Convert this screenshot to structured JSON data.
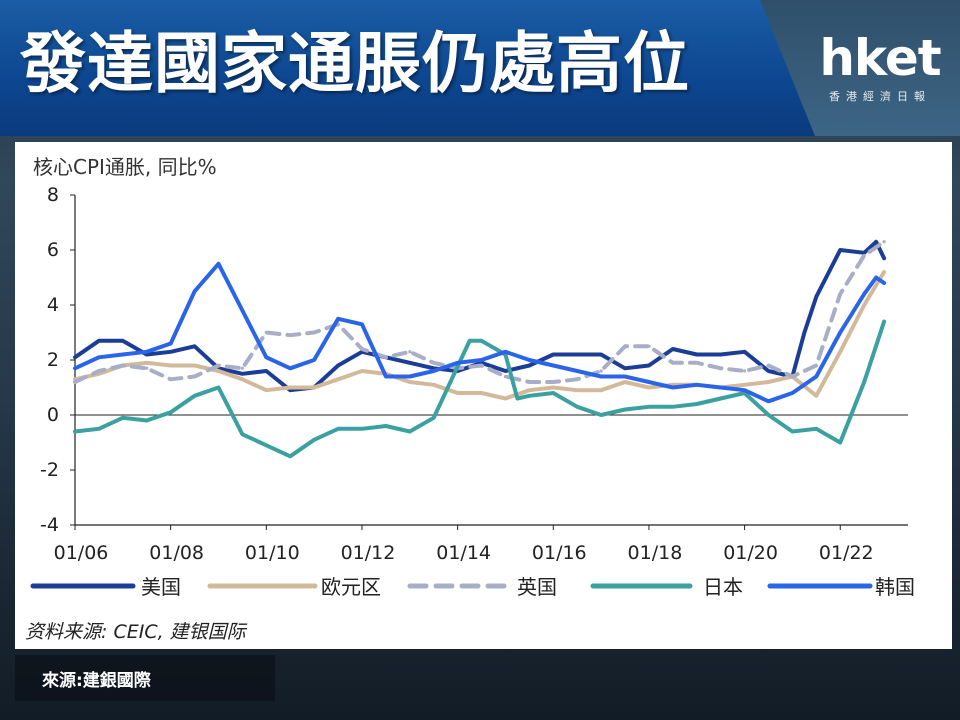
{
  "header": {
    "title": "發達國家通脹仍處高位",
    "logo_text": "hket",
    "logo_subtext": "香港經濟日報"
  },
  "footer": {
    "source": "來源:建銀國際"
  },
  "colors": {
    "us": "#1c3d96",
    "eurozone": "#d2b99a",
    "uk": "#a7aec6",
    "japan": "#3aa0a0",
    "korea": "#2a64e8",
    "title_band": "#0d4690"
  },
  "chart_data": {
    "type": "line",
    "title": "核心CPI通胀, 同比%",
    "source_note": "资料来源: CEIC, 建银国际",
    "xlabel": "",
    "ylabel": "",
    "x_ticks": [
      "01/06",
      "01/08",
      "01/10",
      "01/12",
      "01/14",
      "01/16",
      "01/18",
      "01/20",
      "01/22"
    ],
    "xlim": [
      "01/2006",
      "12/2022"
    ],
    "ylim": [
      -4,
      8
    ],
    "y_ticks": [
      "8",
      "6",
      "4",
      "2",
      "0",
      "-2",
      "-4"
    ],
    "grid": false,
    "legend_position": "bottom",
    "series": [
      {
        "name": "美国",
        "style": "solid",
        "color_key": "us",
        "x": [
          "01/2006",
          "07/2006",
          "01/2007",
          "07/2007",
          "01/2008",
          "07/2008",
          "01/2009",
          "07/2009",
          "01/2010",
          "07/2010",
          "01/2011",
          "07/2011",
          "01/2012",
          "07/2012",
          "01/2013",
          "07/2013",
          "01/2014",
          "07/2014",
          "01/2015",
          "07/2015",
          "01/2016",
          "07/2016",
          "01/2017",
          "07/2017",
          "01/2018",
          "07/2018",
          "01/2019",
          "07/2019",
          "01/2020",
          "07/2020",
          "01/2021",
          "04/2021",
          "07/2021",
          "01/2022",
          "07/2022",
          "10/2022",
          "12/2022"
        ],
        "values": [
          2.1,
          2.7,
          2.7,
          2.2,
          2.3,
          2.5,
          1.7,
          1.5,
          1.6,
          0.9,
          1.0,
          1.8,
          2.3,
          2.1,
          1.9,
          1.7,
          1.6,
          1.9,
          1.6,
          1.8,
          2.2,
          2.2,
          2.2,
          1.7,
          1.8,
          2.4,
          2.2,
          2.2,
          2.3,
          1.6,
          1.4,
          3.0,
          4.3,
          6.0,
          5.9,
          6.3,
          5.7
        ]
      },
      {
        "name": "欧元区",
        "style": "solid",
        "color_key": "eurozone",
        "x": [
          "01/2006",
          "07/2006",
          "01/2007",
          "07/2007",
          "01/2008",
          "07/2008",
          "01/2009",
          "07/2009",
          "01/2010",
          "07/2010",
          "01/2011",
          "07/2011",
          "01/2012",
          "07/2012",
          "01/2013",
          "07/2013",
          "01/2014",
          "07/2014",
          "01/2015",
          "07/2015",
          "01/2016",
          "07/2016",
          "01/2017",
          "07/2017",
          "01/2018",
          "07/2018",
          "01/2019",
          "07/2019",
          "01/2020",
          "07/2020",
          "01/2021",
          "07/2021",
          "01/2022",
          "07/2022",
          "12/2022"
        ],
        "values": [
          1.3,
          1.5,
          1.8,
          1.9,
          1.8,
          1.8,
          1.6,
          1.3,
          0.9,
          1.0,
          1.0,
          1.3,
          1.6,
          1.5,
          1.2,
          1.1,
          0.8,
          0.8,
          0.6,
          0.9,
          1.0,
          0.9,
          0.9,
          1.2,
          1.0,
          1.1,
          1.1,
          1.0,
          1.1,
          1.2,
          1.4,
          0.7,
          2.3,
          4.0,
          5.2
        ]
      },
      {
        "name": "英国",
        "style": "dashed",
        "color_key": "uk",
        "x": [
          "01/2006",
          "07/2006",
          "01/2007",
          "07/2007",
          "01/2008",
          "07/2008",
          "01/2009",
          "07/2009",
          "01/2010",
          "07/2010",
          "01/2011",
          "07/2011",
          "01/2012",
          "07/2012",
          "01/2013",
          "07/2013",
          "01/2014",
          "07/2014",
          "01/2015",
          "07/2015",
          "01/2016",
          "07/2016",
          "01/2017",
          "07/2017",
          "01/2018",
          "07/2018",
          "01/2019",
          "07/2019",
          "01/2020",
          "07/2020",
          "01/2021",
          "07/2021",
          "01/2022",
          "07/2022",
          "12/2022"
        ],
        "values": [
          1.2,
          1.6,
          1.8,
          1.7,
          1.3,
          1.4,
          1.8,
          1.7,
          3.0,
          2.9,
          3.0,
          3.3,
          2.4,
          2.1,
          2.3,
          1.9,
          1.7,
          1.8,
          1.4,
          1.2,
          1.2,
          1.3,
          1.6,
          2.5,
          2.5,
          1.9,
          1.9,
          1.7,
          1.6,
          1.8,
          1.4,
          1.8,
          4.4,
          5.8,
          6.3
        ]
      },
      {
        "name": "日本",
        "style": "solid",
        "color_key": "japan",
        "x": [
          "01/2006",
          "07/2006",
          "01/2007",
          "07/2007",
          "01/2008",
          "07/2008",
          "01/2009",
          "07/2009",
          "01/2010",
          "07/2010",
          "01/2011",
          "07/2011",
          "01/2012",
          "07/2012",
          "01/2013",
          "07/2013",
          "04/2014",
          "07/2014",
          "01/2015",
          "04/2015",
          "07/2015",
          "01/2016",
          "07/2016",
          "01/2017",
          "07/2017",
          "01/2018",
          "07/2018",
          "01/2019",
          "07/2019",
          "01/2020",
          "07/2020",
          "01/2021",
          "07/2021",
          "01/2022",
          "07/2022",
          "12/2022"
        ],
        "values": [
          -0.6,
          -0.5,
          -0.1,
          -0.2,
          0.1,
          0.7,
          1.0,
          -0.7,
          -1.1,
          -1.5,
          -0.9,
          -0.5,
          -0.5,
          -0.4,
          -0.6,
          -0.1,
          2.7,
          2.7,
          2.2,
          0.6,
          0.7,
          0.8,
          0.3,
          0.0,
          0.2,
          0.3,
          0.3,
          0.4,
          0.6,
          0.8,
          0.0,
          -0.6,
          -0.5,
          -1.0,
          1.2,
          3.4
        ]
      },
      {
        "name": "韩国",
        "style": "solid",
        "color_key": "korea",
        "x": [
          "01/2006",
          "07/2006",
          "01/2007",
          "07/2007",
          "01/2008",
          "07/2008",
          "01/2009",
          "07/2009",
          "01/2010",
          "07/2010",
          "01/2011",
          "07/2011",
          "01/2012",
          "07/2012",
          "01/2013",
          "07/2013",
          "01/2014",
          "07/2014",
          "01/2015",
          "07/2015",
          "01/2016",
          "07/2016",
          "01/2017",
          "07/2017",
          "01/2018",
          "07/2018",
          "01/2019",
          "07/2019",
          "01/2020",
          "07/2020",
          "01/2021",
          "07/2021",
          "01/2022",
          "07/2022",
          "10/2022",
          "12/2022"
        ],
        "values": [
          1.7,
          2.1,
          2.2,
          2.3,
          2.6,
          4.5,
          5.5,
          3.8,
          2.1,
          1.7,
          2.0,
          3.5,
          3.3,
          1.4,
          1.4,
          1.6,
          1.9,
          2.0,
          2.3,
          2.0,
          1.8,
          1.6,
          1.4,
          1.4,
          1.2,
          1.0,
          1.1,
          1.0,
          0.9,
          0.5,
          0.8,
          1.4,
          3.0,
          4.4,
          5.0,
          4.8
        ]
      }
    ]
  }
}
